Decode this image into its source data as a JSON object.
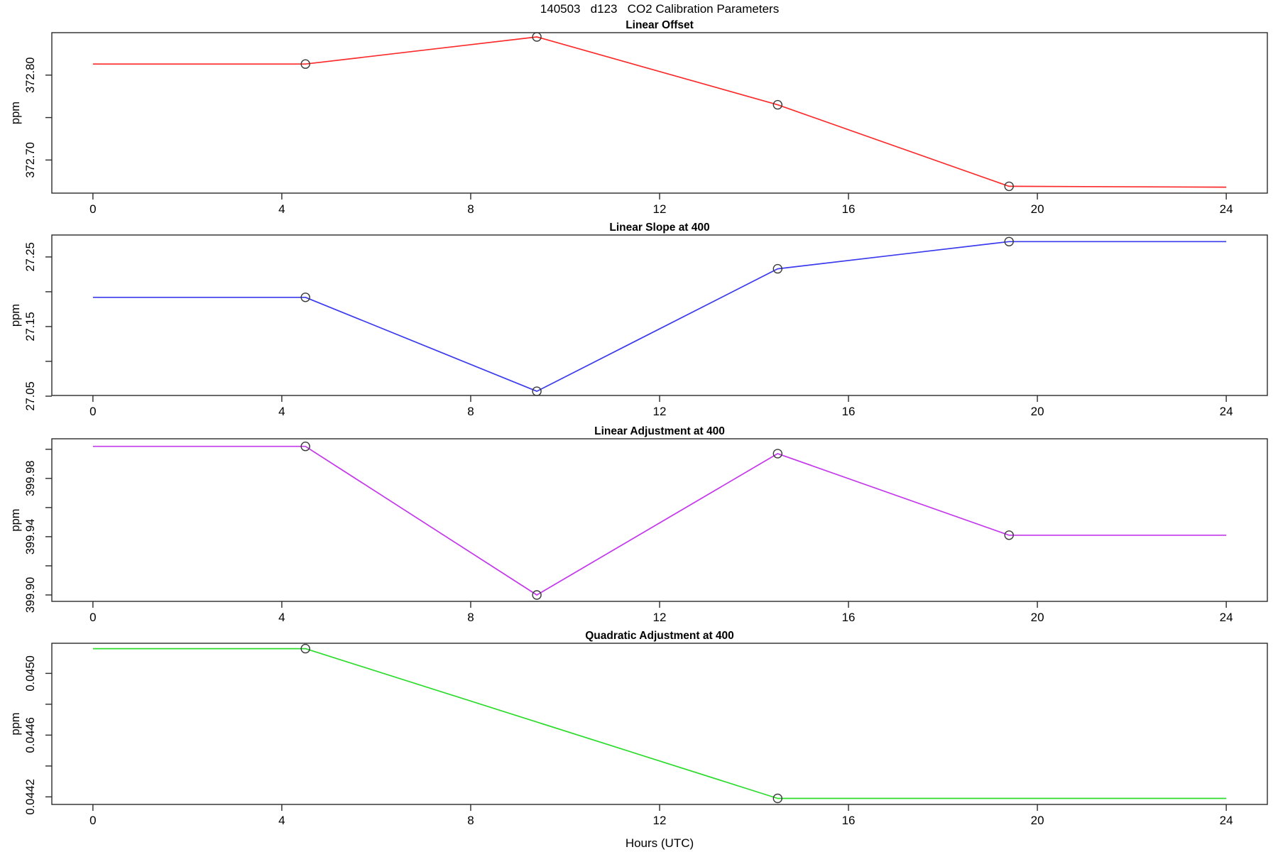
{
  "title": "140503   d123   CO2 Calibration Parameters",
  "chart_data": {
    "type": "line",
    "xlabel": "Hours (UTC)",
    "ylabel": "ppm",
    "xlim": [
      -0.87,
      24.87
    ],
    "x_ticks": [
      0,
      4,
      8,
      12,
      16,
      20,
      24
    ],
    "panels": [
      {
        "title": "Linear Offset",
        "color": "#fb2b2b",
        "x": [
          0,
          4.5,
          9.4,
          14.5,
          19.4,
          24
        ],
        "y": [
          372.813,
          372.813,
          372.845,
          372.765,
          372.669,
          372.668
        ],
        "markers_x": [
          4.5,
          9.4,
          14.5,
          19.4
        ],
        "markers_y": [
          372.813,
          372.845,
          372.765,
          372.669
        ],
        "ylim": [
          372.661,
          372.85
        ],
        "y_ticks": [
          {
            "v": 372.8,
            "label": "372.80"
          },
          {
            "v": 372.75,
            "label": ""
          },
          {
            "v": 372.7,
            "label": "372.70"
          }
        ]
      },
      {
        "title": "Linear Slope at 400",
        "color": "#3b3bee",
        "x": [
          0,
          4.5,
          9.4,
          14.5,
          19.4,
          24
        ],
        "y": [
          27.192,
          27.192,
          27.057,
          27.233,
          27.272,
          27.272
        ],
        "markers_x": [
          4.5,
          9.4,
          14.5,
          19.4
        ],
        "markers_y": [
          27.192,
          27.057,
          27.233,
          27.272
        ],
        "ylim": [
          27.051,
          27.2815
        ],
        "y_ticks": [
          {
            "v": 27.25,
            "label": "27.25"
          },
          {
            "v": 27.2,
            "label": ""
          },
          {
            "v": 27.15,
            "label": "27.15"
          },
          {
            "v": 27.1,
            "label": ""
          },
          {
            "v": 27.05,
            "label": "27.05"
          }
        ]
      },
      {
        "title": "Linear Adjustment at 400",
        "color": "#c438ec",
        "x": [
          0,
          4.5,
          9.4,
          14.5,
          19.4,
          24
        ],
        "y": [
          400.002,
          400.002,
          399.9,
          399.997,
          399.941,
          399.941
        ],
        "markers_x": [
          4.5,
          9.4,
          14.5,
          19.4
        ],
        "markers_y": [
          400.002,
          399.9,
          399.997,
          399.941
        ],
        "ylim": [
          399.8956,
          400.0072
        ],
        "y_ticks": [
          {
            "v": 400.0,
            "label": ""
          },
          {
            "v": 399.98,
            "label": "399.98"
          },
          {
            "v": 399.96,
            "label": ""
          },
          {
            "v": 399.94,
            "label": "399.94"
          },
          {
            "v": 399.92,
            "label": ""
          },
          {
            "v": 399.9,
            "label": "399.90"
          }
        ]
      },
      {
        "title": "Quadratic Adjustment at 400",
        "color": "#2bdc2b",
        "x": [
          0,
          4.5,
          14.5,
          24
        ],
        "y": [
          0.04516,
          0.04516,
          0.04419,
          0.04419
        ],
        "markers_x": [
          4.5,
          14.5
        ],
        "markers_y": [
          0.04516,
          0.04419
        ],
        "ylim": [
          0.044151,
          0.045195
        ],
        "y_ticks": [
          {
            "v": 0.045,
            "label": "0.0450"
          },
          {
            "v": 0.0448,
            "label": ""
          },
          {
            "v": 0.0446,
            "label": "0.0446"
          },
          {
            "v": 0.0444,
            "label": ""
          },
          {
            "v": 0.0442,
            "label": "0.0442"
          }
        ]
      }
    ]
  }
}
